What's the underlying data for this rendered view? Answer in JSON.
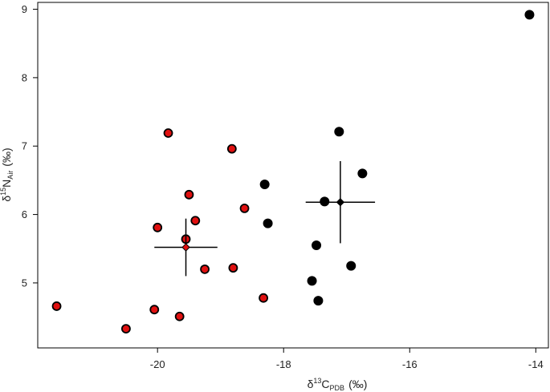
{
  "chart_data": {
    "type": "scatter",
    "title": "",
    "xlabel": {
      "delta": "δ",
      "sup": "13",
      "main": "C",
      "sub": "PDB",
      "unit": "(‰)"
    },
    "ylabel": {
      "delta": "δ",
      "sup": "15",
      "main": "N",
      "sub": "Air",
      "unit": "(‰)"
    },
    "xlim": [
      -21.9,
      -13.8
    ],
    "ylim": [
      4.05,
      9.1
    ],
    "x_ticks": [
      -20,
      -18,
      -16,
      -14
    ],
    "x_tick_labels": [
      "-20",
      "-18",
      "-16",
      "-14"
    ],
    "y_ticks": [
      5,
      6,
      7,
      8,
      9
    ],
    "y_tick_labels": [
      "5",
      "6",
      "7",
      "8",
      "9"
    ],
    "grid": false,
    "series": [
      {
        "color": "#e01010",
        "points": [
          [
            -21.6,
            4.66
          ],
          [
            -20.5,
            4.33
          ],
          [
            -20.05,
            4.61
          ],
          [
            -19.65,
            4.51
          ],
          [
            -20.0,
            5.81
          ],
          [
            -19.83,
            7.19
          ],
          [
            -19.5,
            6.29
          ],
          [
            -19.4,
            5.91
          ],
          [
            -19.55,
            5.64
          ],
          [
            -19.25,
            5.2
          ],
          [
            -18.82,
            6.96
          ],
          [
            -18.62,
            6.09
          ],
          [
            -18.8,
            5.22
          ],
          [
            -18.32,
            4.78
          ]
        ],
        "mean": {
          "x": -19.55,
          "y": 5.52,
          "x_err": 0.5,
          "y_err": 0.42
        }
      },
      {
        "color": "#000000",
        "points": [
          [
            -18.3,
            6.44
          ],
          [
            -18.25,
            5.87
          ],
          [
            -17.35,
            6.19
          ],
          [
            -17.12,
            7.21
          ],
          [
            -17.48,
            5.55
          ],
          [
            -17.55,
            5.03
          ],
          [
            -17.45,
            4.74
          ],
          [
            -16.93,
            5.25
          ],
          [
            -16.75,
            6.6
          ],
          [
            -14.1,
            8.92
          ]
        ],
        "mean": {
          "x": -17.1,
          "y": 6.18,
          "x_err": 0.55,
          "y_err": 0.6
        }
      }
    ]
  }
}
